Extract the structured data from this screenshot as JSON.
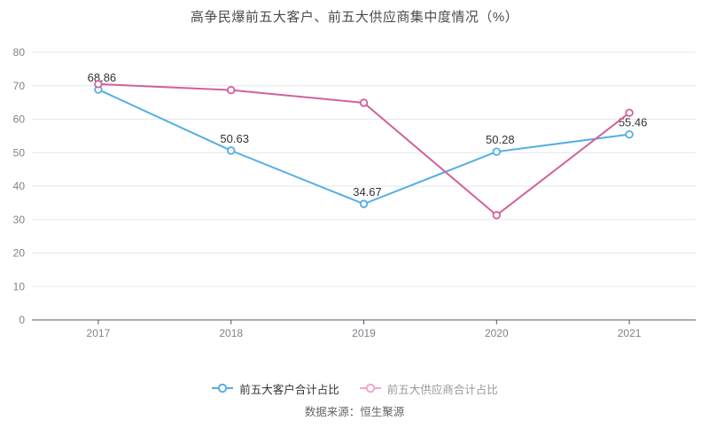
{
  "title": "高争民爆前五大客户、前五大供应商集中度情况（%）",
  "source": "数据来源：恒生聚源",
  "colors": {
    "customer_line": "#55AEE4",
    "supplier_line": "#D2609B",
    "supplier_legend_marker": "#F2A7CD",
    "grid_line": "#E2E7F2",
    "axis_line": "#55585E",
    "tick_label": "#7E838A",
    "data_label": "#333333",
    "background": "#FFFFFF"
  },
  "chart_data": {
    "type": "line",
    "title": "高争民爆前五大客户、前五大供应商集中度情况（%）",
    "categories": [
      "2017",
      "2018",
      "2019",
      "2020",
      "2021"
    ],
    "series": [
      {
        "name": "前五大客户合计占比",
        "values": [
          68.86,
          50.63,
          34.67,
          50.28,
          55.46
        ],
        "color": "#55AEE4",
        "data_labels": [
          "68.86",
          "50.63",
          "34.67",
          "50.28",
          "55.46"
        ],
        "labels_visible": true
      },
      {
        "name": "前五大供应商合计占比",
        "values": [
          70.5,
          68.7,
          64.9,
          31.3,
          61.9
        ],
        "color": "#D2609B",
        "data_labels": [],
        "labels_visible": false
      }
    ],
    "xlabel": "",
    "ylabel": "",
    "ylim": [
      0,
      80
    ],
    "ytick_step": 10,
    "yticks": [
      0,
      10,
      20,
      30,
      40,
      50,
      60,
      70,
      80
    ],
    "grid": true,
    "legend_position": "bottom"
  },
  "legend": {
    "items": [
      {
        "label": "前五大客户合计占比",
        "marker_color": "#55AEE4",
        "text_color": "#333333"
      },
      {
        "label": "前五大供应商合计占比",
        "marker_color": "#F2A7CD",
        "text_color": "#999999"
      }
    ]
  }
}
